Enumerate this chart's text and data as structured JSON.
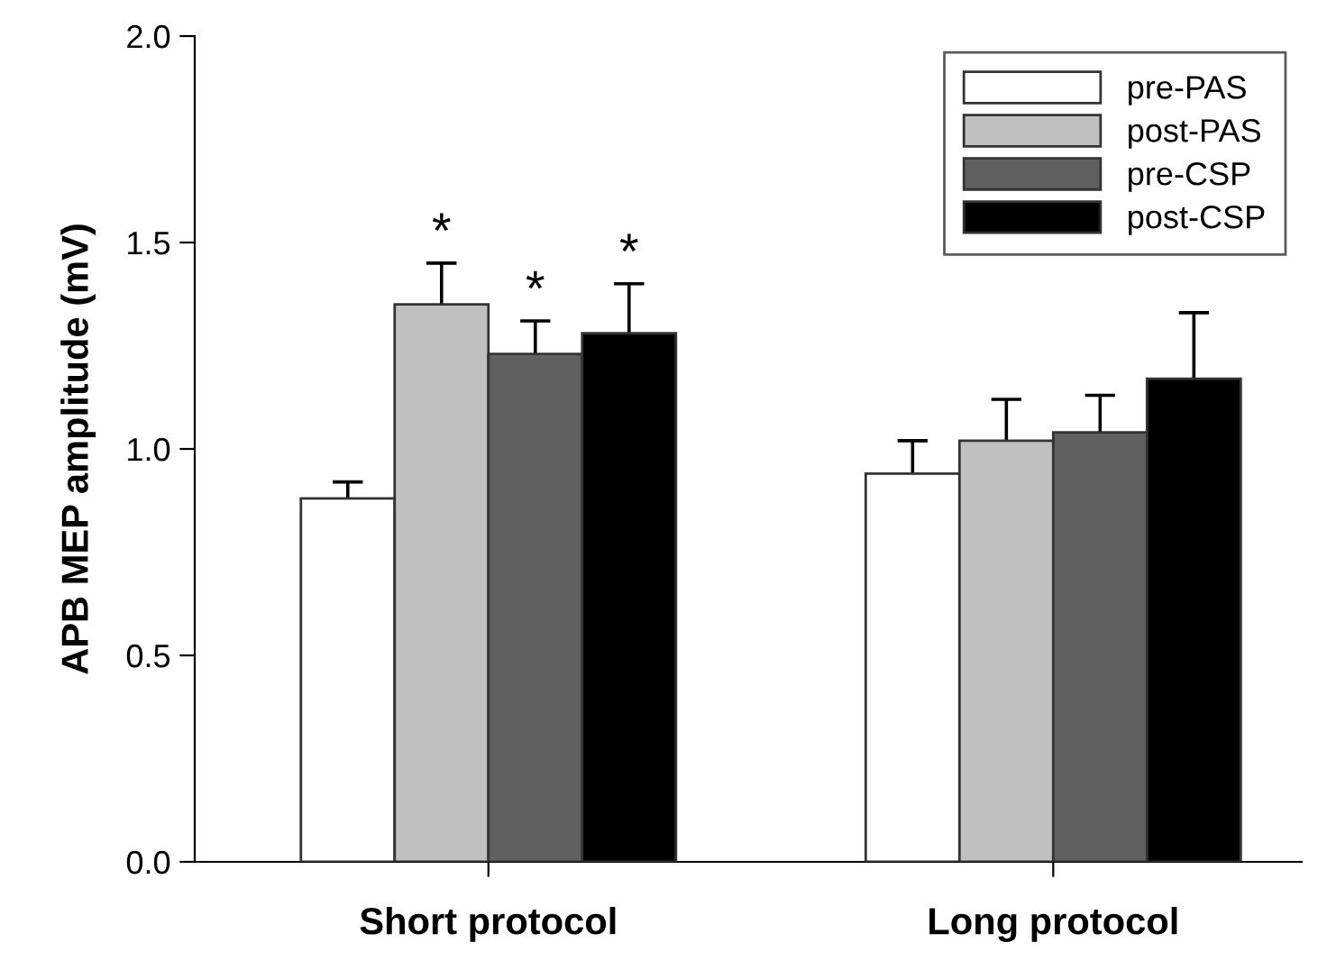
{
  "chart_data": {
    "type": "bar",
    "ylabel": "APB MEP amplitude (mV)",
    "categories": [
      "Short protocol",
      "Long protocol"
    ],
    "series": [
      {
        "name": "pre-PAS",
        "color": "#ffffff",
        "values": [
          0.88,
          0.94
        ],
        "errors": [
          0.04,
          0.08
        ]
      },
      {
        "name": "post-PAS",
        "color": "#c0c0c0",
        "values": [
          1.35,
          1.02
        ],
        "errors": [
          0.1,
          0.1
        ],
        "value_labels": [
          "*",
          null
        ]
      },
      {
        "name": "pre-CSP",
        "color": "#606060",
        "values": [
          1.23,
          1.04
        ],
        "errors": [
          0.08,
          0.09
        ],
        "value_labels": [
          "*",
          null
        ]
      },
      {
        "name": "post-CSP",
        "color": "#000000",
        "values": [
          1.28,
          1.17
        ],
        "errors": [
          0.12,
          0.16
        ],
        "value_labels": [
          "*",
          null
        ]
      }
    ],
    "ylim": [
      0,
      2.0
    ],
    "yticks": [
      {
        "value": 0,
        "label": "0.0"
      },
      {
        "value": 0.5,
        "label": "0.5"
      },
      {
        "value": 1.0,
        "label": "1.0"
      },
      {
        "value": 1.5,
        "label": "1.5"
      },
      {
        "value": 2.0,
        "label": "2.0"
      }
    ],
    "grid": false,
    "legend": "top right"
  }
}
